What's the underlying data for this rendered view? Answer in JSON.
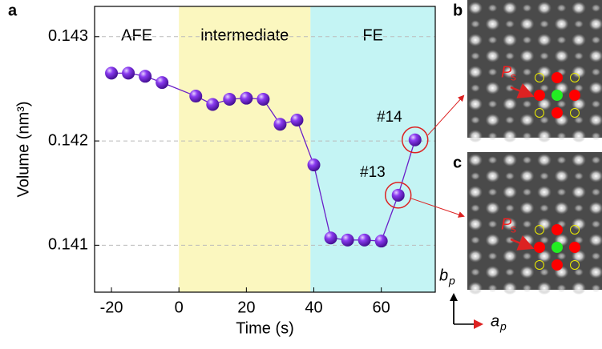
{
  "chart_data": {
    "type": "line",
    "panel_label": "a",
    "xlabel": "Time (s)",
    "ylabel": "Volume (nm³)",
    "x": [
      -20,
      -15,
      -10,
      -5,
      5,
      10,
      15,
      20,
      25,
      30,
      35,
      40,
      45,
      50,
      55,
      60,
      65,
      70
    ],
    "values": [
      0.14265,
      0.14265,
      0.14262,
      0.14256,
      0.14243,
      0.14235,
      0.1424,
      0.14241,
      0.1424,
      0.14216,
      0.1422,
      0.14177,
      0.14107,
      0.14105,
      0.14105,
      0.14104,
      0.14148,
      0.14201
    ],
    "color": "#6a1fc8",
    "xlim": [
      -25,
      76
    ],
    "ylim": [
      0.14055,
      0.14329
    ],
    "xticks": [
      -20,
      0,
      20,
      40,
      60
    ],
    "yticks": [
      0.141,
      0.142,
      0.143
    ],
    "grid": true,
    "regions": [
      {
        "label": "AFE",
        "from": -25,
        "to": 0,
        "color": "#ffffff"
      },
      {
        "label": "intermediate",
        "from": 0,
        "to": 39,
        "color": "#fbf7bf"
      },
      {
        "label": "FE",
        "from": 39,
        "to": 76,
        "color": "#c4f4f4"
      }
    ],
    "annotations": [
      "#13",
      "#14"
    ]
  },
  "images": {
    "panels": [
      "b",
      "c"
    ],
    "polarization": {
      "main": "P",
      "sub": "s"
    },
    "axes": [
      {
        "main": "b",
        "sub": "p"
      },
      {
        "main": "a",
        "sub": "p"
      }
    ]
  }
}
